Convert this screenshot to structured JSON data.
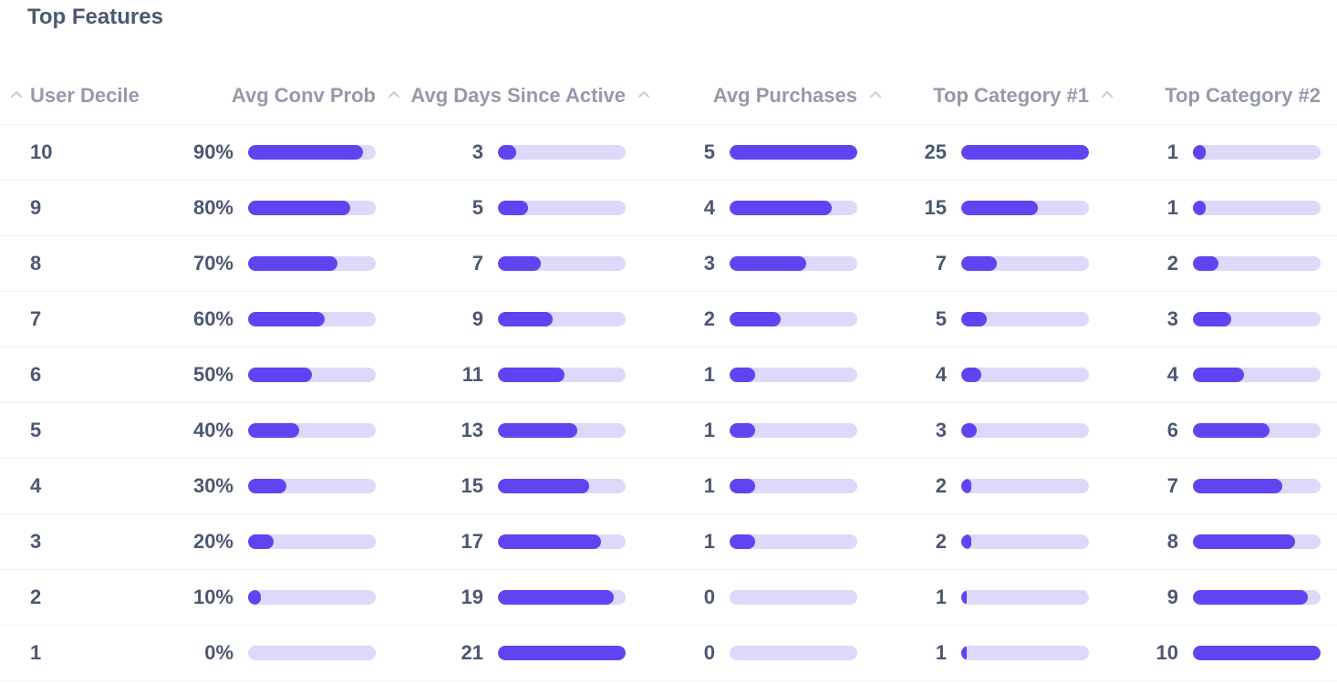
{
  "title": "Top Features",
  "colors": {
    "bar_fill": "#5f45f2",
    "bar_track": "#dcd9fb",
    "text": "#4c5773",
    "header_text": "#949aab"
  },
  "columns": [
    {
      "key": "decile",
      "label": "User Decile",
      "sort_icon": "chevron-up-icon"
    },
    {
      "key": "conv",
      "label": "Avg Conv Prob",
      "sort_icon": "chevron-up-icon",
      "bar_max": 100
    },
    {
      "key": "days",
      "label": "Avg Days Since Active",
      "sort_icon": "chevron-up-icon",
      "bar_max": 21
    },
    {
      "key": "purchases",
      "label": "Avg Purchases",
      "sort_icon": "chevron-up-icon",
      "bar_max": 5
    },
    {
      "key": "cat1",
      "label": "Top Category #1",
      "sort_icon": "chevron-up-icon",
      "bar_max": 25
    },
    {
      "key": "cat2",
      "label": "Top Category #2",
      "sort_icon": "",
      "bar_max": 10
    }
  ],
  "rows": [
    {
      "decile": "10",
      "conv": "90%",
      "conv_value": 90,
      "days": "3",
      "days_value": 3,
      "purchases": "5",
      "purchases_value": 5,
      "cat1": "25",
      "cat1_value": 25,
      "cat2": "1",
      "cat2_value": 1
    },
    {
      "decile": "9",
      "conv": "80%",
      "conv_value": 80,
      "days": "5",
      "days_value": 5,
      "purchases": "4",
      "purchases_value": 4,
      "cat1": "15",
      "cat1_value": 15,
      "cat2": "1",
      "cat2_value": 1
    },
    {
      "decile": "8",
      "conv": "70%",
      "conv_value": 70,
      "days": "7",
      "days_value": 7,
      "purchases": "3",
      "purchases_value": 3,
      "cat1": "7",
      "cat1_value": 7,
      "cat2": "2",
      "cat2_value": 2
    },
    {
      "decile": "7",
      "conv": "60%",
      "conv_value": 60,
      "days": "9",
      "days_value": 9,
      "purchases": "2",
      "purchases_value": 2,
      "cat1": "5",
      "cat1_value": 5,
      "cat2": "3",
      "cat2_value": 3
    },
    {
      "decile": "6",
      "conv": "50%",
      "conv_value": 50,
      "days": "11",
      "days_value": 11,
      "purchases": "1",
      "purchases_value": 1,
      "cat1": "4",
      "cat1_value": 4,
      "cat2": "4",
      "cat2_value": 4
    },
    {
      "decile": "5",
      "conv": "40%",
      "conv_value": 40,
      "days": "13",
      "days_value": 13,
      "purchases": "1",
      "purchases_value": 1,
      "cat1": "3",
      "cat1_value": 3,
      "cat2": "6",
      "cat2_value": 6
    },
    {
      "decile": "4",
      "conv": "30%",
      "conv_value": 30,
      "days": "15",
      "days_value": 15,
      "purchases": "1",
      "purchases_value": 1,
      "cat1": "2",
      "cat1_value": 2,
      "cat2": "7",
      "cat2_value": 7
    },
    {
      "decile": "3",
      "conv": "20%",
      "conv_value": 20,
      "days": "17",
      "days_value": 17,
      "purchases": "1",
      "purchases_value": 1,
      "cat1": "2",
      "cat1_value": 2,
      "cat2": "8",
      "cat2_value": 8
    },
    {
      "decile": "2",
      "conv": "10%",
      "conv_value": 10,
      "days": "19",
      "days_value": 19,
      "purchases": "0",
      "purchases_value": 0,
      "cat1": "1",
      "cat1_value": 1,
      "cat2": "9",
      "cat2_value": 9
    },
    {
      "decile": "1",
      "conv": "0%",
      "conv_value": 0,
      "days": "21",
      "days_value": 21,
      "purchases": "0",
      "purchases_value": 0,
      "cat1": "1",
      "cat1_value": 1,
      "cat2": "10",
      "cat2_value": 10
    }
  ]
}
